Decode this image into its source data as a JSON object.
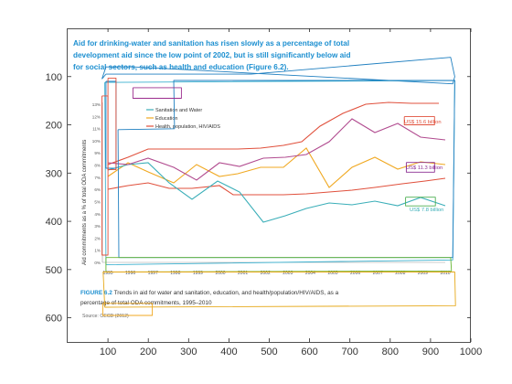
{
  "chart_data": {
    "type": "line",
    "axes": {
      "xlim": [
        0,
        1000
      ],
      "ylim": [
        650,
        0
      ],
      "x_reversed": false,
      "y_reversed": true,
      "xticks": [
        100,
        200,
        300,
        400,
        500,
        600,
        700,
        800,
        900,
        1000
      ],
      "yticks": [
        100,
        200,
        300,
        400,
        500,
        600
      ],
      "grid": false
    },
    "background_image": {
      "caption_title": "Aid for drinking-water and sanitation has risen slowly as a percentage of total development aid since the low point of 2002, but is still significantly below aid for social sectors, such as health and education (Figure 6.2).",
      "figure_label": "FIGURE 6.2",
      "figure_caption": "Trends in aid for water and sanitation, education, and health/population/HIV/AIDS, as a percentage of total ODA commitments, 1995–2010",
      "source": "Source: OECD (2012)",
      "inner_ylabel": "Aid commitments as a % of total ODA commitments",
      "inner_yticks": [
        "13%",
        "12%",
        "11%",
        "10%",
        "9%",
        "8%",
        "7%",
        "6%",
        "5%",
        "4%",
        "3%",
        "2%",
        "1%",
        "0%"
      ],
      "inner_xticks": [
        "1995",
        "1996",
        "1997",
        "1998",
        "1999",
        "2000",
        "2001",
        "2002",
        "2003",
        "2004",
        "2005",
        "2006",
        "2007",
        "2008",
        "2009",
        "2010"
      ],
      "legend": [
        "Sanitation and Water",
        "Education",
        "Health, population, HIV/AIDS"
      ],
      "annotations": [
        "US$ 15.6 billion",
        "US$ 11.3 billion",
        "US$ 7.8 billion"
      ],
      "colors": {
        "water": "#3aaeb8",
        "education": "#f0a820",
        "health": "#e0503c",
        "caption_blue": "#1c8fd0"
      }
    },
    "series": [
      {
        "color": "#1f7fc0",
        "x": [
          85,
          95,
          455,
          950,
          960,
          955,
          165,
          95,
          85
        ],
        "y": [
          105,
          95,
          95,
          60,
          100,
          115,
          80,
          80,
          105
        ]
      },
      {
        "color": "#39b0cf",
        "x": [
          92,
          960,
          955,
          95,
          92
        ],
        "y": [
          112,
          108,
          480,
          490,
          112
        ]
      },
      {
        "color": "#1f7fc0",
        "x": [
          95,
          120,
          120,
          95,
          95
        ],
        "y": [
          110,
          110,
          290,
          290,
          110
        ]
      },
      {
        "color": "#1f7fc0",
        "x": [
          125,
          265,
          263,
          960,
          955,
          127,
          125
        ],
        "y": [
          210,
          208,
          108,
          108,
          475,
          475,
          210
        ]
      },
      {
        "color": "#e0503c",
        "x": [
          85,
          100,
          100,
          85,
          85
        ],
        "y": [
          140,
          140,
          470,
          470,
          140
        ]
      },
      {
        "color": "#e0503c",
        "x": [
          100,
          120,
          120,
          100,
          100
        ],
        "y": [
          103,
          103,
          293,
          293,
          103
        ]
      },
      {
        "color": "#9b2c8e",
        "x": [
          162,
          282,
          282,
          162,
          162
        ],
        "y": [
          123,
          123,
          145,
          145,
          123
        ]
      },
      {
        "color": "#e0503c",
        "x": [
          835,
          910,
          910,
          835,
          835
        ],
        "y": [
          183,
          183,
          200,
          200,
          183
        ]
      },
      {
        "color": "#8b2f92",
        "x": [
          840,
          910,
          910,
          840,
          840
        ],
        "y": [
          278,
          278,
          298,
          298,
          278
        ]
      },
      {
        "color": "#4caf50",
        "x": [
          838,
          912,
          912,
          838,
          838
        ],
        "y": [
          350,
          350,
          368,
          368,
          350
        ]
      },
      {
        "color": "#66b531",
        "x": [
          95,
          950,
          952,
          95,
          95
        ],
        "y": [
          475,
          475,
          503,
          505,
          475
        ]
      },
      {
        "color": "#e6a818",
        "x": [
          87,
          960,
          962,
          92,
          88
        ],
        "y": [
          505,
          505,
          575,
          578,
          505
        ]
      },
      {
        "color": "#f0a820",
        "x": [
          87,
          210,
          210,
          87,
          87
        ],
        "y": [
          570,
          570,
          595,
          595,
          570
        ]
      }
    ]
  }
}
